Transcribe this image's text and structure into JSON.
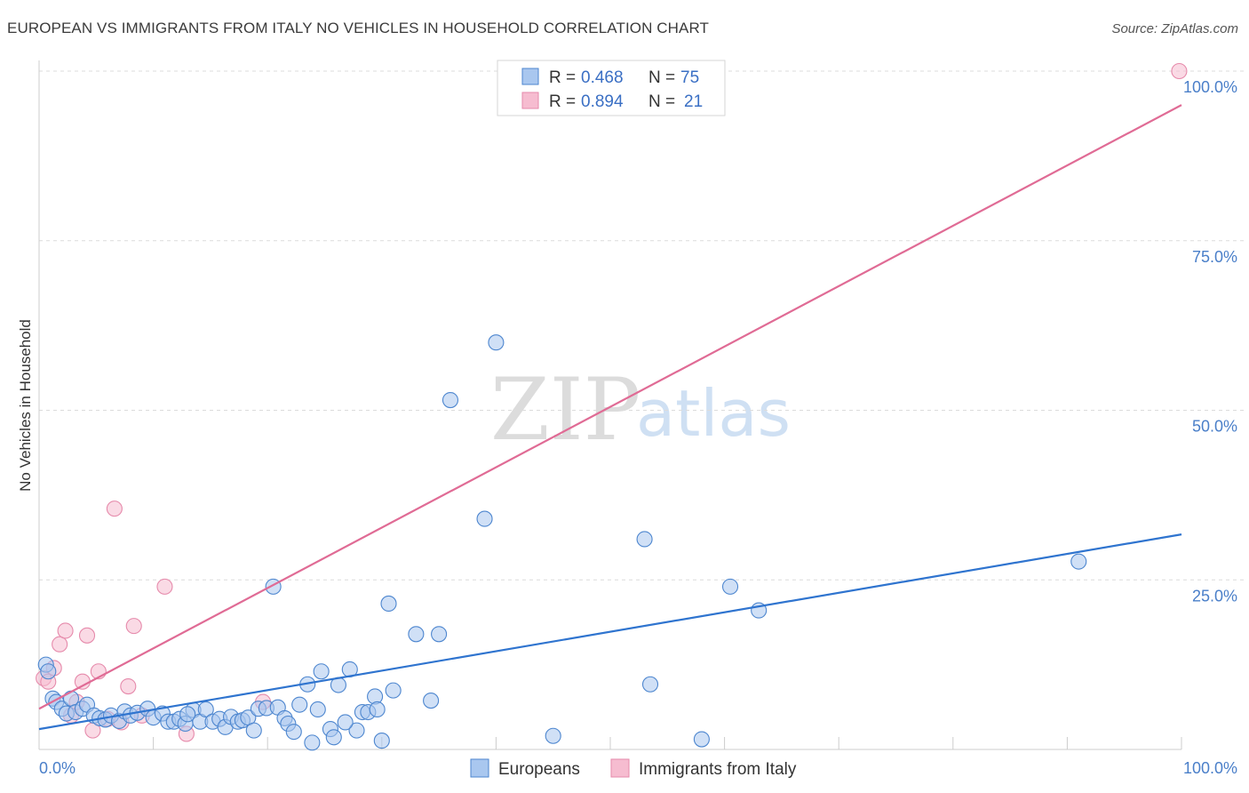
{
  "title": "EUROPEAN VS IMMIGRANTS FROM ITALY NO VEHICLES IN HOUSEHOLD CORRELATION CHART",
  "source": "Source: ZipAtlas.com",
  "watermark": {
    "zip": "ZIP",
    "atlas": "atlas"
  },
  "colors": {
    "blue_fill": "#a9c7ef",
    "blue_stroke": "#4d86cf",
    "blue_line": "#2f74cf",
    "pink_fill": "#f6bcd0",
    "pink_stroke": "#e68aab",
    "pink_line": "#e06b95",
    "grid": "#dcdcdc",
    "tick_text": "#4a7fc9"
  },
  "chart_data": {
    "type": "scatter",
    "title": "EUROPEAN VS IMMIGRANTS FROM ITALY NO VEHICLES IN HOUSEHOLD CORRELATION CHART",
    "xlabel": "",
    "ylabel": "No Vehicles in Household",
    "xlim": [
      0,
      100
    ],
    "ylim": [
      0,
      100
    ],
    "y_ticks": [
      {
        "value": 25,
        "label": "25.0%"
      },
      {
        "value": 50,
        "label": "50.0%"
      },
      {
        "value": 75,
        "label": "75.0%"
      },
      {
        "value": 100,
        "label": "100.0%"
      }
    ],
    "x_ticks": [
      {
        "value": 0,
        "label": "0.0%"
      },
      {
        "value": 100,
        "label": "100.0%"
      }
    ],
    "legend": [
      {
        "series": "Europeans",
        "r_label": "R =",
        "r": "0.468",
        "n_label": "N =",
        "n": "75"
      },
      {
        "series": "Immigrants from Italy",
        "r_label": "R =",
        "r": "0.894",
        "n_label": "N =",
        "n": "21"
      }
    ],
    "series": [
      {
        "name": "Europeans",
        "trend": {
          "x0": 0,
          "y0": 3.0,
          "x1": 100,
          "y1": 31.7
        },
        "points": [
          [
            0.6,
            12.5
          ],
          [
            0.8,
            11.5
          ],
          [
            1.2,
            7.5
          ],
          [
            1.5,
            7.0
          ],
          [
            2.0,
            6.0
          ],
          [
            2.4,
            5.3
          ],
          [
            2.8,
            7.5
          ],
          [
            3.2,
            5.5
          ],
          [
            3.8,
            6.0
          ],
          [
            4.2,
            6.6
          ],
          [
            4.8,
            5.0
          ],
          [
            5.3,
            4.6
          ],
          [
            5.8,
            4.4
          ],
          [
            6.3,
            5.0
          ],
          [
            7.0,
            4.2
          ],
          [
            7.5,
            5.6
          ],
          [
            8.0,
            5.0
          ],
          [
            8.6,
            5.4
          ],
          [
            9.5,
            6.0
          ],
          [
            10.0,
            4.7
          ],
          [
            10.8,
            5.3
          ],
          [
            11.3,
            4.1
          ],
          [
            11.8,
            4.1
          ],
          [
            12.3,
            4.5
          ],
          [
            12.8,
            3.8
          ],
          [
            13.5,
            5.8
          ],
          [
            14.1,
            4.1
          ],
          [
            14.6,
            5.9
          ],
          [
            15.2,
            4.1
          ],
          [
            15.8,
            4.5
          ],
          [
            16.3,
            3.3
          ],
          [
            16.8,
            4.8
          ],
          [
            17.4,
            4.1
          ],
          [
            17.8,
            4.3
          ],
          [
            18.3,
            4.7
          ],
          [
            18.8,
            2.8
          ],
          [
            19.2,
            6.0
          ],
          [
            19.9,
            6.1
          ],
          [
            20.5,
            24.0
          ],
          [
            20.9,
            6.2
          ],
          [
            21.5,
            4.6
          ],
          [
            21.8,
            3.8
          ],
          [
            22.3,
            2.6
          ],
          [
            22.8,
            6.6
          ],
          [
            23.5,
            9.6
          ],
          [
            23.9,
            1.0
          ],
          [
            24.4,
            5.9
          ],
          [
            24.7,
            11.5
          ],
          [
            25.5,
            3.0
          ],
          [
            25.8,
            1.8
          ],
          [
            26.2,
            9.5
          ],
          [
            27.2,
            11.8
          ],
          [
            27.8,
            2.8
          ],
          [
            28.3,
            5.5
          ],
          [
            28.8,
            5.5
          ],
          [
            29.4,
            7.8
          ],
          [
            29.6,
            5.9
          ],
          [
            30.0,
            1.3
          ],
          [
            30.6,
            21.5
          ],
          [
            31.0,
            8.7
          ],
          [
            33.0,
            17.0
          ],
          [
            34.3,
            7.2
          ],
          [
            35.0,
            17.0
          ],
          [
            36.0,
            51.5
          ],
          [
            40.0,
            60.0
          ],
          [
            39.0,
            34.0
          ],
          [
            45.0,
            2.0
          ],
          [
            53.0,
            31.0
          ],
          [
            53.5,
            9.6
          ],
          [
            58.0,
            1.5
          ],
          [
            60.5,
            24.0
          ],
          [
            63.0,
            20.5
          ],
          [
            91.0,
            27.7
          ],
          [
            26.8,
            4.0
          ],
          [
            13.0,
            5.2
          ]
        ]
      },
      {
        "name": "Immigrants from Italy",
        "trend": {
          "x0": 0,
          "y0": 6.0,
          "x1": 100,
          "y1": 95.0
        },
        "points": [
          [
            0.4,
            10.5
          ],
          [
            0.8,
            10.0
          ],
          [
            1.3,
            12.0
          ],
          [
            1.8,
            15.5
          ],
          [
            2.3,
            17.5
          ],
          [
            2.8,
            5.0
          ],
          [
            3.3,
            7.0
          ],
          [
            3.8,
            10.0
          ],
          [
            4.2,
            16.8
          ],
          [
            4.7,
            2.8
          ],
          [
            5.2,
            11.5
          ],
          [
            6.0,
            4.5
          ],
          [
            6.6,
            35.5
          ],
          [
            7.2,
            4.0
          ],
          [
            7.8,
            9.3
          ],
          [
            8.3,
            18.2
          ],
          [
            9.0,
            5.0
          ],
          [
            11.0,
            24.0
          ],
          [
            12.9,
            2.3
          ],
          [
            19.6,
            7.0
          ],
          [
            99.8,
            100.0
          ]
        ]
      }
    ]
  }
}
